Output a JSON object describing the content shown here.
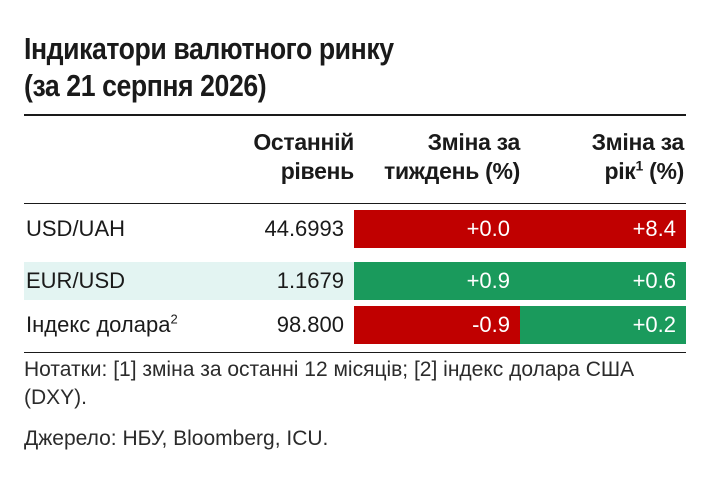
{
  "title": {
    "line1": "Індикатори валютного ринку",
    "line2": "(за 21 серпня 2026)"
  },
  "headers": {
    "last_line1": "Останній",
    "last_line2": "рівень",
    "week_line1": "Зміна за",
    "week_line2": "тиждень (%)",
    "year_line1": "Зміна за",
    "year_line2_pre": "рік",
    "year_sup": "1",
    "year_line2_post": " (%)"
  },
  "rows": [
    {
      "name": "USD/UAH",
      "name_sup": "",
      "last": "44.6993",
      "week": "+0.0",
      "year": "+8.4",
      "week_color": "#c00000",
      "year_color": "#c00000"
    },
    {
      "name": "EUR/USD",
      "name_sup": "",
      "last": "1.1679",
      "week": "+0.9",
      "year": "+0.6",
      "week_color": "#1a9a5c",
      "year_color": "#1a9a5c"
    },
    {
      "name": "Індекс долара",
      "name_sup": "2",
      "last": "98.800",
      "week": "-0.9",
      "year": "+0.2",
      "week_color": "#c00000",
      "year_color": "#1a9a5c"
    }
  ],
  "notes": "Нотатки: [1] зміна за останні 12 місяців; [2] індекс долара США (DXY).",
  "source": "Джерело: НБУ, Bloomberg, ICU."
}
